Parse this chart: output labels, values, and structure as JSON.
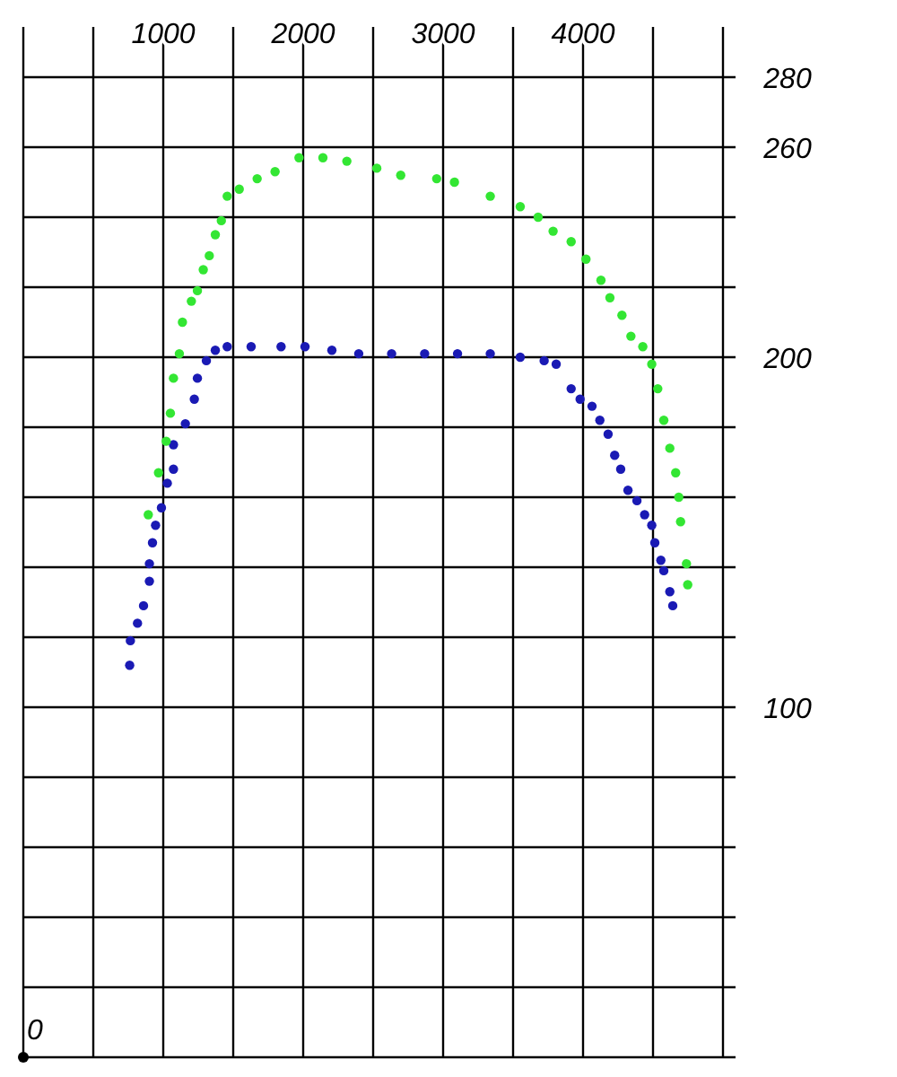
{
  "chart_data": {
    "type": "scatter",
    "xlim": [
      0,
      5000
    ],
    "ylim": [
      0,
      280
    ],
    "xticks": [
      {
        "value": 0,
        "label": null
      },
      {
        "value": 500,
        "label": null
      },
      1000,
      {
        "value": 1500,
        "label": null
      },
      2000,
      {
        "value": 2500,
        "label": null
      },
      3000,
      {
        "value": 3500,
        "label": null
      },
      4000,
      {
        "value": 4500,
        "label": null
      },
      {
        "value": 5000,
        "label": null
      }
    ],
    "annotations": [
      {
        "text": "0",
        "x": 0,
        "y": 0
      }
    ],
    "yticks": [
      {
        "value": 0,
        "label": null
      },
      {
        "value": 20,
        "label": null
      },
      {
        "value": 40,
        "label": null
      },
      {
        "value": 60,
        "label": null
      },
      {
        "value": 80,
        "label": null
      },
      100,
      {
        "value": 120,
        "label": null
      },
      {
        "value": 140,
        "label": null
      },
      {
        "value": 160,
        "label": null
      },
      {
        "value": 180,
        "label": null
      },
      200,
      {
        "value": 220,
        "label": null
      },
      {
        "value": 240,
        "label": null
      },
      260,
      280
    ],
    "grid": true,
    "marker": "circle",
    "series": [
      {
        "color": "#1a1ab4",
        "x": [
          760,
          765,
          816,
          859,
          901,
          901,
          923,
          945,
          987,
          1029,
          1073,
          1073,
          1158,
          1222,
          1244,
          1308,
          1372,
          1457,
          1628,
          1842,
          2013,
          2205,
          2397,
          2632,
          2868,
          3103,
          3337,
          3551,
          3722,
          3808,
          3915,
          3979,
          4064,
          4120,
          4179,
          4226,
          4269,
          4321,
          4385,
          4440,
          4491,
          4513,
          4556,
          4577,
          4620,
          4641
        ],
        "values": [
          112,
          119,
          124,
          129,
          136,
          141,
          147,
          152,
          157,
          164,
          168,
          175,
          181,
          188,
          194,
          199,
          202,
          203,
          203,
          203,
          203,
          202,
          201,
          201,
          201,
          201,
          201,
          200,
          199,
          198,
          191,
          188,
          186,
          182,
          178,
          172,
          168,
          162,
          159,
          155,
          152,
          147,
          142,
          139,
          133,
          129
        ]
      },
      {
        "color": "#33e633",
        "x": [
          893,
          966,
          1021,
          1051,
          1073,
          1115,
          1137,
          1201,
          1244,
          1286,
          1329,
          1372,
          1415,
          1457,
          1543,
          1671,
          1799,
          1970,
          2141,
          2312,
          2526,
          2697,
          2954,
          3081,
          3337,
          3551,
          3679,
          3786,
          3915,
          4021,
          4128,
          4192,
          4278,
          4342,
          4427,
          4491,
          4534,
          4577,
          4620,
          4662,
          4684,
          4697,
          4739,
          4748
        ],
        "values": [
          155,
          167,
          176,
          184,
          194,
          201,
          210,
          216,
          219,
          225,
          229,
          235,
          239,
          246,
          248,
          251,
          253,
          257,
          257,
          256,
          254,
          252,
          251,
          250,
          246,
          243,
          240,
          236,
          233,
          228,
          222,
          217,
          212,
          206,
          203,
          198,
          191,
          182,
          174,
          167,
          160,
          153,
          141,
          135
        ]
      }
    ]
  }
}
